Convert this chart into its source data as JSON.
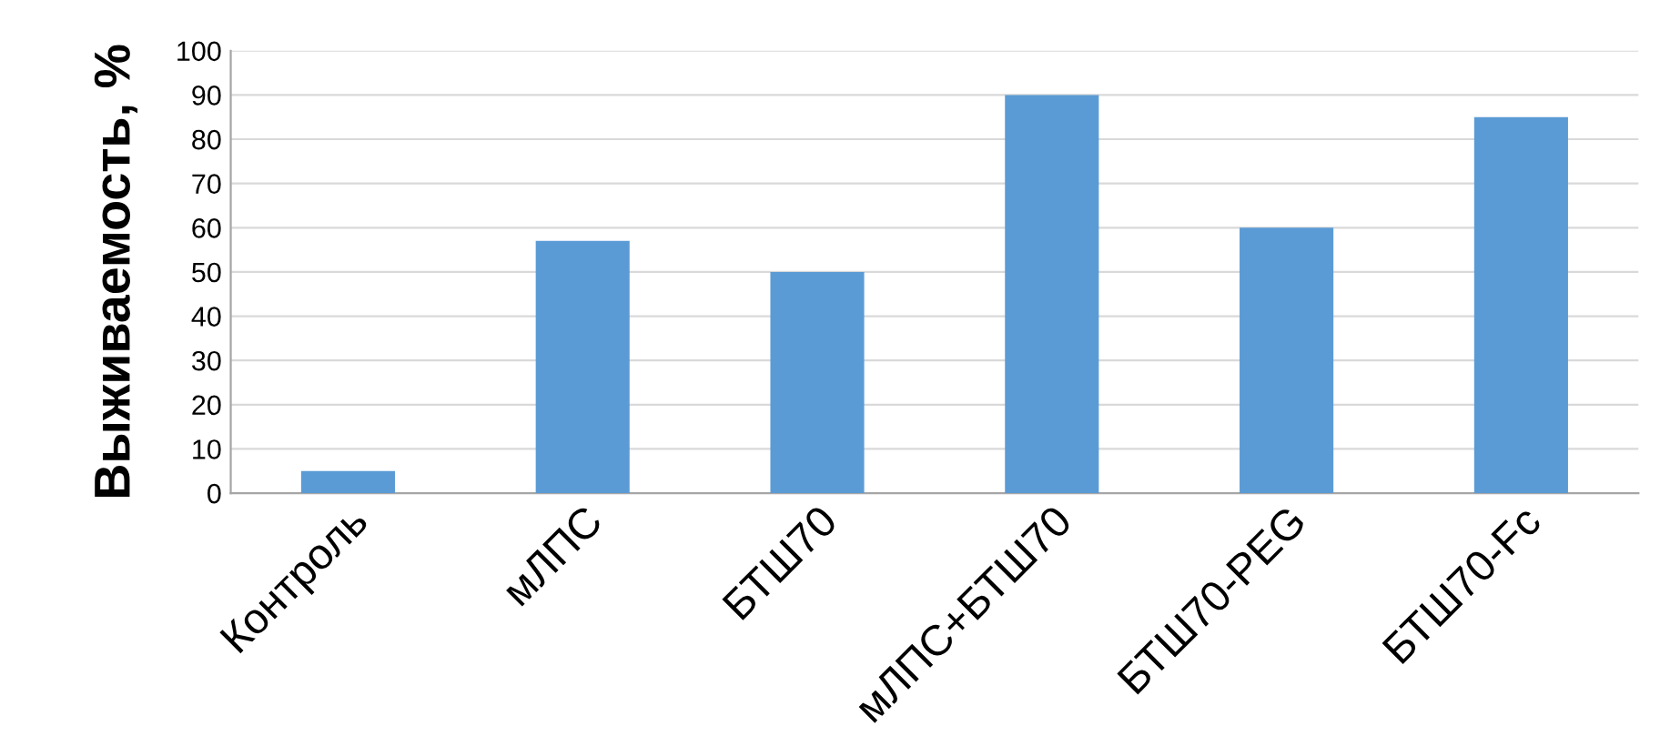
{
  "chart_data": {
    "type": "bar",
    "ylabel": "Выживаемость, %",
    "categories": [
      "Контроль",
      "мЛПС",
      "БТШ70",
      "мЛПС+БТШ70",
      "БТШ70-PEG",
      "БТШ70-Fc"
    ],
    "values": [
      5,
      57,
      50,
      90,
      60,
      85
    ],
    "color": "#5b9bd5",
    "ylim": [
      0,
      100
    ],
    "yticks": [
      0,
      10,
      20,
      30,
      40,
      50,
      60,
      70,
      80,
      90,
      100
    ],
    "grid": "y"
  }
}
